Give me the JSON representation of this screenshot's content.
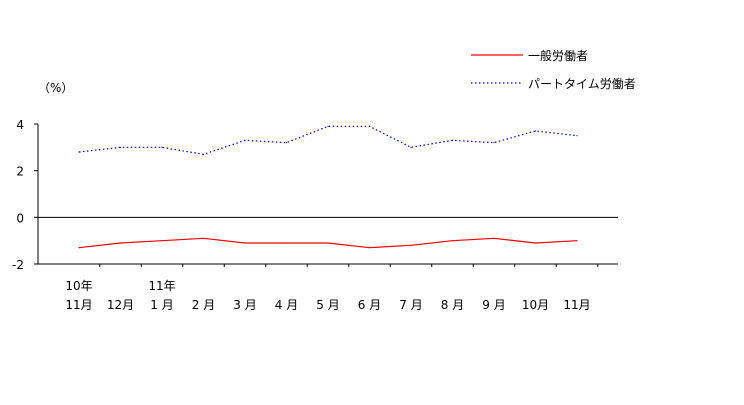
{
  "chart_data": {
    "type": "line",
    "ylabel": "（%）",
    "ylim": [
      -2,
      4
    ],
    "yticks": [
      4,
      2,
      0,
      -2
    ],
    "categories": [
      {
        "month": "11月",
        "year": "10年"
      },
      {
        "month": "12月",
        "year": ""
      },
      {
        "month": "1 月",
        "year": "11年"
      },
      {
        "month": "2 月",
        "year": ""
      },
      {
        "month": "3 月",
        "year": ""
      },
      {
        "month": "4 月",
        "year": ""
      },
      {
        "month": "5 月",
        "year": ""
      },
      {
        "month": "6 月",
        "year": ""
      },
      {
        "month": "7 月",
        "year": ""
      },
      {
        "month": "8 月",
        "year": ""
      },
      {
        "month": "9 月",
        "year": ""
      },
      {
        "month": "10月",
        "year": ""
      },
      {
        "month": "11月",
        "year": ""
      }
    ],
    "series": [
      {
        "name": "一般労働者",
        "color": "#ff0000",
        "style": "solid",
        "values": [
          -1.3,
          -1.1,
          -1.0,
          -0.9,
          -1.1,
          -1.1,
          -1.1,
          -1.3,
          -1.2,
          -1.0,
          -0.9,
          -1.1,
          -1.0
        ]
      },
      {
        "name": "パートタイム労働者",
        "color": "#0000cc",
        "style": "dotted",
        "values": [
          2.8,
          3.0,
          3.0,
          2.7,
          3.3,
          3.2,
          3.9,
          3.9,
          3.0,
          3.3,
          3.2,
          3.7,
          3.5
        ]
      }
    ],
    "grid": false,
    "legend_position": "top-right"
  }
}
